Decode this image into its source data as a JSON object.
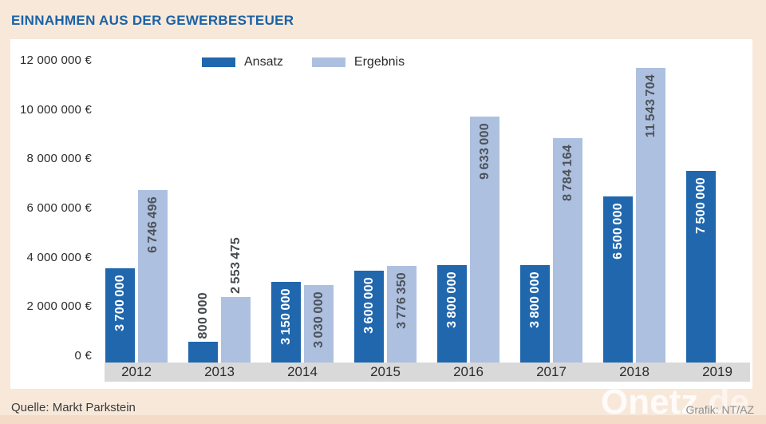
{
  "title": "EINNAHMEN AUS DER GEWERBESTEUER",
  "legend": {
    "items": [
      {
        "name": "Ansatz",
        "color": "#2067ae"
      },
      {
        "name": "Ergebnis",
        "color": "#adc0e0"
      }
    ]
  },
  "footer": {
    "source": "Quelle: Markt Parkstein",
    "credit": "Grafik: NT/AZ",
    "watermark_main": "Onetz",
    "watermark_suffix": ".de"
  },
  "colors": {
    "ansatz": "#2067ae",
    "ergebnis": "#adc0e0",
    "background": "#f8e8da",
    "panel": "#ffffff",
    "axis_band": "#d9d9d9",
    "title_blue": "#1b62a6"
  },
  "chart_data": {
    "type": "bar",
    "title": "EINNAHMEN AUS DER GEWERBESTEUER",
    "xlabel": "",
    "ylabel": "€",
    "ylim": [
      0,
      12000000
    ],
    "grid": false,
    "legend_position": "top",
    "categories": [
      "2012",
      "2013",
      "2014",
      "2015",
      "2016",
      "2017",
      "2018",
      "2019"
    ],
    "series": [
      {
        "name": "Ansatz",
        "values": [
          3700000,
          800000,
          3150000,
          3600000,
          3800000,
          3800000,
          6500000,
          7500000
        ],
        "labels": [
          "3 700 000",
          "800 000",
          "3 150 000",
          "3 600 000",
          "3 800 000",
          "3 800 000",
          "6 500 000",
          "7 500 000"
        ]
      },
      {
        "name": "Ergebnis",
        "values": [
          6746496,
          2553475,
          3030000,
          3776350,
          9633000,
          8784164,
          11543704,
          null
        ],
        "labels": [
          "6 746 496",
          "2 553 475",
          "3 030 000",
          "3 776 350",
          "9 633 000",
          "8 784 164",
          "11 543 704",
          null
        ]
      }
    ],
    "yticks": [
      {
        "value": 12000000,
        "label": "12 000 000 €"
      },
      {
        "value": 10000000,
        "label": "10 000 000 €"
      },
      {
        "value": 8000000,
        "label": "8 000 000 €"
      },
      {
        "value": 6000000,
        "label": "6 000 000 €"
      },
      {
        "value": 4000000,
        "label": "4 000 000 €"
      },
      {
        "value": 2000000,
        "label": "2 000 000 €"
      },
      {
        "value": 0,
        "label": "0 €"
      }
    ]
  }
}
